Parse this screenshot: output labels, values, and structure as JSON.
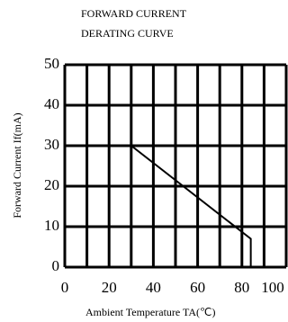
{
  "chart_data": {
    "type": "line",
    "title": [
      "FORWARD CURRENT",
      "DERATING CURVE"
    ],
    "xlabel": "Ambient Temperature TA(℃)",
    "ylabel": "Forward Current If(mA)",
    "x": [
      0,
      30,
      84,
      84
    ],
    "series": [
      {
        "name": "If",
        "color": "#000000",
        "values": [
          30,
          30,
          7,
          0
        ]
      }
    ],
    "xlim": [
      0,
      100
    ],
    "ylim": [
      0,
      50
    ],
    "xticks": [
      0,
      20,
      40,
      60,
      80,
      100
    ],
    "yticks": [
      0,
      10,
      20,
      30,
      40,
      50
    ],
    "xgrid": [
      0,
      10,
      20,
      30,
      40,
      50,
      60,
      70,
      80,
      90,
      100
    ],
    "grid": true
  }
}
